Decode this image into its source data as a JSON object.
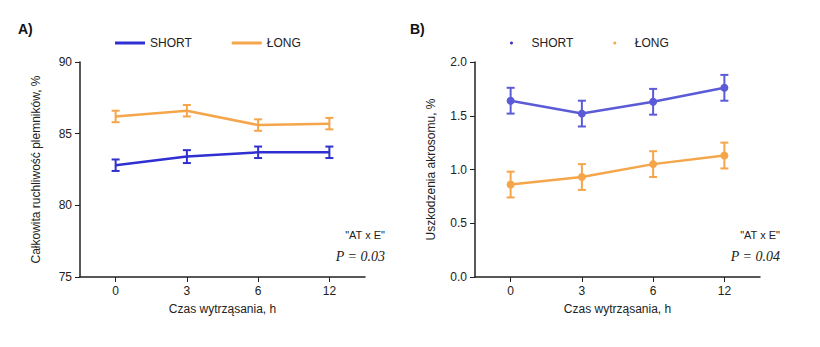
{
  "chart_data": [
    {
      "type": "line",
      "title": "A)",
      "x_label": "Czas wytrząsania, h",
      "y_label": "Całkowita ruchliwość plemników, %",
      "categories": [
        "0",
        "3",
        "6",
        "12"
      ],
      "series": [
        {
          "name": "SHORT",
          "color": "#2f2fd2",
          "marker": "none",
          "values": [
            82.8,
            83.4,
            83.7,
            83.7
          ],
          "errors": [
            0.4,
            0.45,
            0.4,
            0.4
          ]
        },
        {
          "name": "ŁONG",
          "color": "#f5a54a",
          "marker": "none",
          "values": [
            86.2,
            86.6,
            85.6,
            85.7
          ],
          "errors": [
            0.4,
            0.4,
            0.4,
            0.4
          ]
        }
      ],
      "ylim": [
        75,
        90
      ],
      "yticks": [
        75,
        80,
        85,
        90
      ],
      "grid": false,
      "legend": "top",
      "annotations": [
        "\"AT x E\"",
        "P = 0.03"
      ]
    },
    {
      "type": "line",
      "title": "B)",
      "x_label": "Czas wytrząsania, h",
      "y_label": "Uszkodzenia akrosomu, %",
      "categories": [
        "0",
        "3",
        "6",
        "12"
      ],
      "series": [
        {
          "name": "SHORT",
          "color": "#5b5bd8",
          "marker": "circle",
          "values": [
            1.64,
            1.52,
            1.63,
            1.76
          ],
          "errors": [
            0.12,
            0.12,
            0.12,
            0.12
          ]
        },
        {
          "name": "ŁONG",
          "color": "#f5a54a",
          "marker": "circle",
          "values": [
            0.86,
            0.93,
            1.05,
            1.13
          ],
          "errors": [
            0.12,
            0.12,
            0.12,
            0.12
          ]
        }
      ],
      "ylim": [
        0,
        2.0
      ],
      "yticks": [
        {
          "value": 0,
          "label": "0.0"
        },
        {
          "value": 0.5,
          "label": "0.5"
        },
        {
          "value": 1,
          "label": "1.0"
        },
        {
          "value": 1.5,
          "label": "1.5"
        },
        {
          "value": 2,
          "label": "2.0"
        }
      ],
      "grid": false,
      "legend": "top",
      "annotations": [
        "\"AT x E\"",
        "P = 0.04"
      ]
    }
  ]
}
